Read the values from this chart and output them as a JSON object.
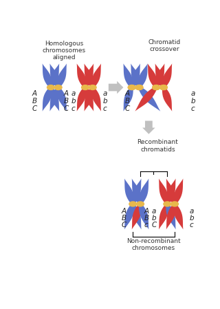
{
  "bg_color": "#ffffff",
  "blue": "#5B72C8",
  "red": "#D63B3B",
  "centromere_color": "#E8B84B",
  "arrow_color": "#C0C0C0",
  "text_color": "#333333",
  "top_left_title": "Homologous\nchromosomes\naligned",
  "top_right_title": "Chromatid\ncrossover",
  "bottom_title": "Recombinant\nchromatids",
  "bottom_label": "Non-recombinant\nchromosomes"
}
